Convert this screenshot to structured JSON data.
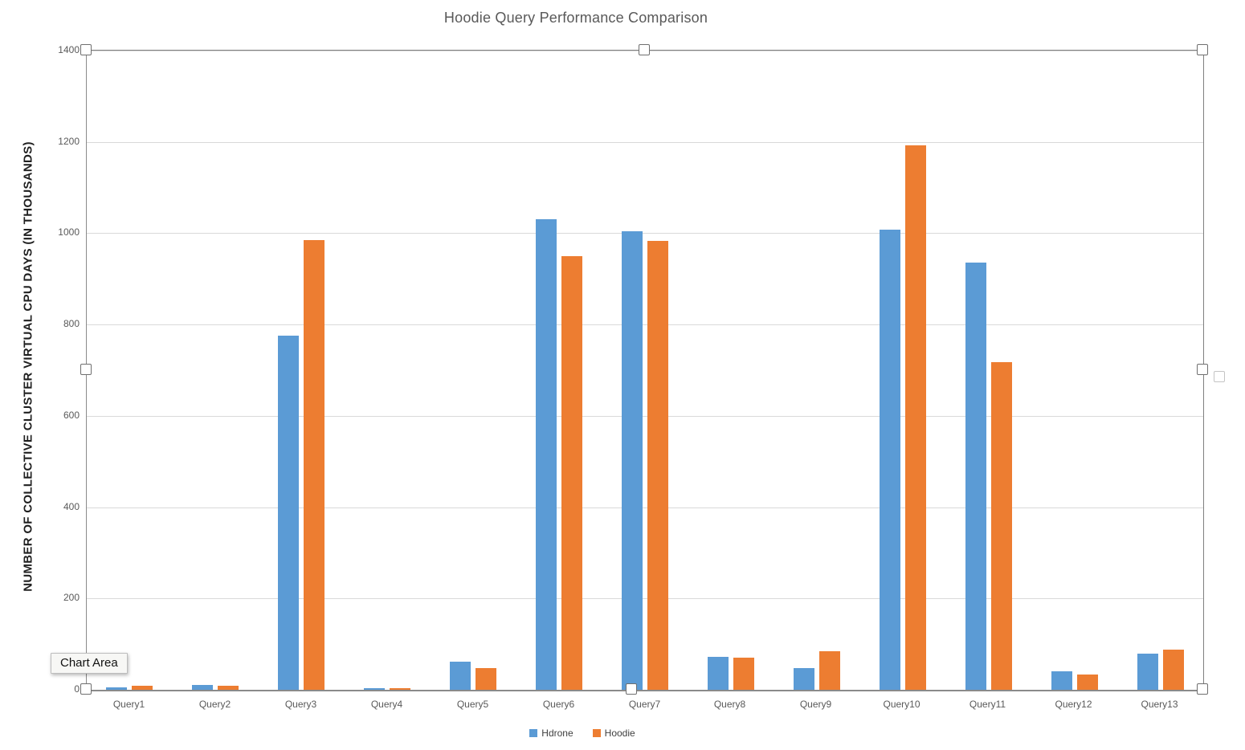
{
  "chart_title": "Hoodie Query Performance Comparison",
  "tooltip_label": "Chart Area",
  "chart_data": {
    "type": "bar",
    "title": "Hoodie Query Performance Comparison",
    "ylabel": "NUMBER OF COLLECTIVE CLUSTER VIRTUAL CPU DAYS (IN THOUSANDS)",
    "xlabel": "",
    "categories": [
      "Query1",
      "Query2",
      "Query3",
      "Query4",
      "Query5",
      "Query6",
      "Query7",
      "Query8",
      "Query9",
      "Query10",
      "Query11",
      "Query12",
      "Query13"
    ],
    "series": [
      {
        "name": "Hdrone",
        "color": "#5B9BD5",
        "values": [
          5,
          10,
          775,
          4,
          62,
          1030,
          1005,
          72,
          47,
          1007,
          935,
          41,
          79
        ]
      },
      {
        "name": "Hoodie",
        "color": "#ED7D31",
        "values": [
          9,
          9,
          985,
          4,
          48,
          950,
          984,
          71,
          84,
          1192,
          717,
          33,
          88
        ]
      }
    ],
    "ylim": [
      0,
      1400
    ],
    "yticks": [
      0,
      200,
      400,
      600,
      800,
      1000,
      1200,
      1400
    ],
    "grid": true,
    "legend_position": "bottom"
  },
  "colors": {
    "hdrone": "#5B9BD5",
    "hoodie": "#ED7D31",
    "gridline": "#D9D9D9",
    "axis_line": "#8A8A8A",
    "selection_border": "#7F7F7F",
    "text_gray": "#595959"
  }
}
